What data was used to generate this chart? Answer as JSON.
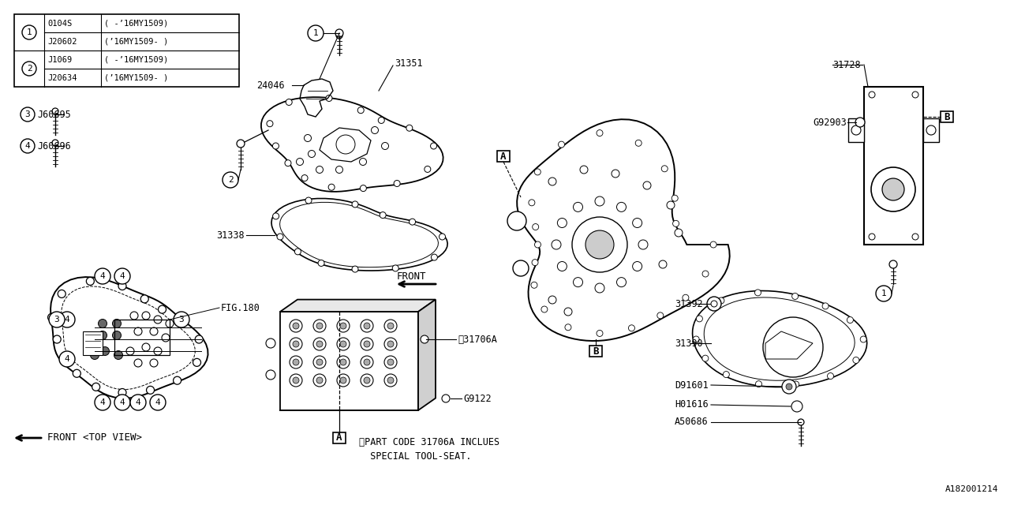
{
  "bg_color": "#ffffff",
  "line_color": "#000000",
  "font_size_label": 8.5,
  "table_rows": [
    [
      "0104S",
      "( -’16MY1509)"
    ],
    [
      "J20602",
      "(’16MY1509- )"
    ],
    [
      "J1069",
      "( -’16MY1509)"
    ],
    [
      "J20634",
      "(’16MY1509- )"
    ]
  ],
  "note_line1": "※PART CODE 31706A INCLUES",
  "note_line2": "  SPECIAL TOOL-SEAT.",
  "catalog_number": "A182001214"
}
